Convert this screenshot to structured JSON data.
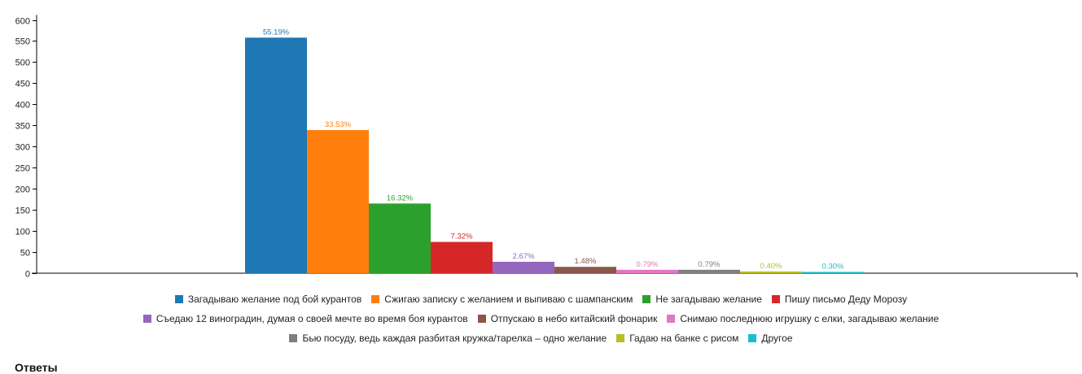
{
  "chart_data": {
    "type": "bar",
    "ylim": [
      0,
      600
    ],
    "yticks": [
      0,
      50,
      100,
      150,
      200,
      250,
      300,
      350,
      400,
      450,
      500,
      550,
      600
    ],
    "grid": false,
    "legend_position": "bottom",
    "series": [
      {
        "name": "Загадываю желание под бой курантов",
        "value": 558,
        "label": "55.19%",
        "color": "#1f77b4"
      },
      {
        "name": "Сжигаю записку с желанием и выпиваю с шампанским",
        "value": 339,
        "label": "33.53%",
        "color": "#ff7f0e"
      },
      {
        "name": "Не загадываю желание",
        "value": 165,
        "label": "16.32%",
        "color": "#2ca02c"
      },
      {
        "name": "Пишу письмо Деду Морозу",
        "value": 74,
        "label": "7.32%",
        "color": "#d62728"
      },
      {
        "name": "Съедаю 12 виноградин, думая о своей мечте во время боя курантов",
        "value": 27,
        "label": "2.67%",
        "color": "#9467bd"
      },
      {
        "name": "Отпускаю в небо китайский фонарик",
        "value": 15,
        "label": "1.48%",
        "color": "#8c564b"
      },
      {
        "name": "Снимаю последнюю игрушку с елки, загадываю желание",
        "value": 8,
        "label": "0.79%",
        "color": "#e377c2"
      },
      {
        "name": "Бью посуду, ведь каждая разбитая кружка/тарелка – одно желание",
        "value": 8,
        "label": "0.79%",
        "color": "#7f7f7f"
      },
      {
        "name": "Гадаю на банке с рисом",
        "value": 4,
        "label": "0.40%",
        "color": "#bcbd22"
      },
      {
        "name": "Другое",
        "value": 3,
        "label": "0.30%",
        "color": "#17becf"
      }
    ]
  },
  "legend_rows": [
    [
      0,
      1,
      2,
      3
    ],
    [
      4,
      5,
      6
    ],
    [
      7,
      8,
      9
    ]
  ],
  "answers_heading": "Ответы"
}
